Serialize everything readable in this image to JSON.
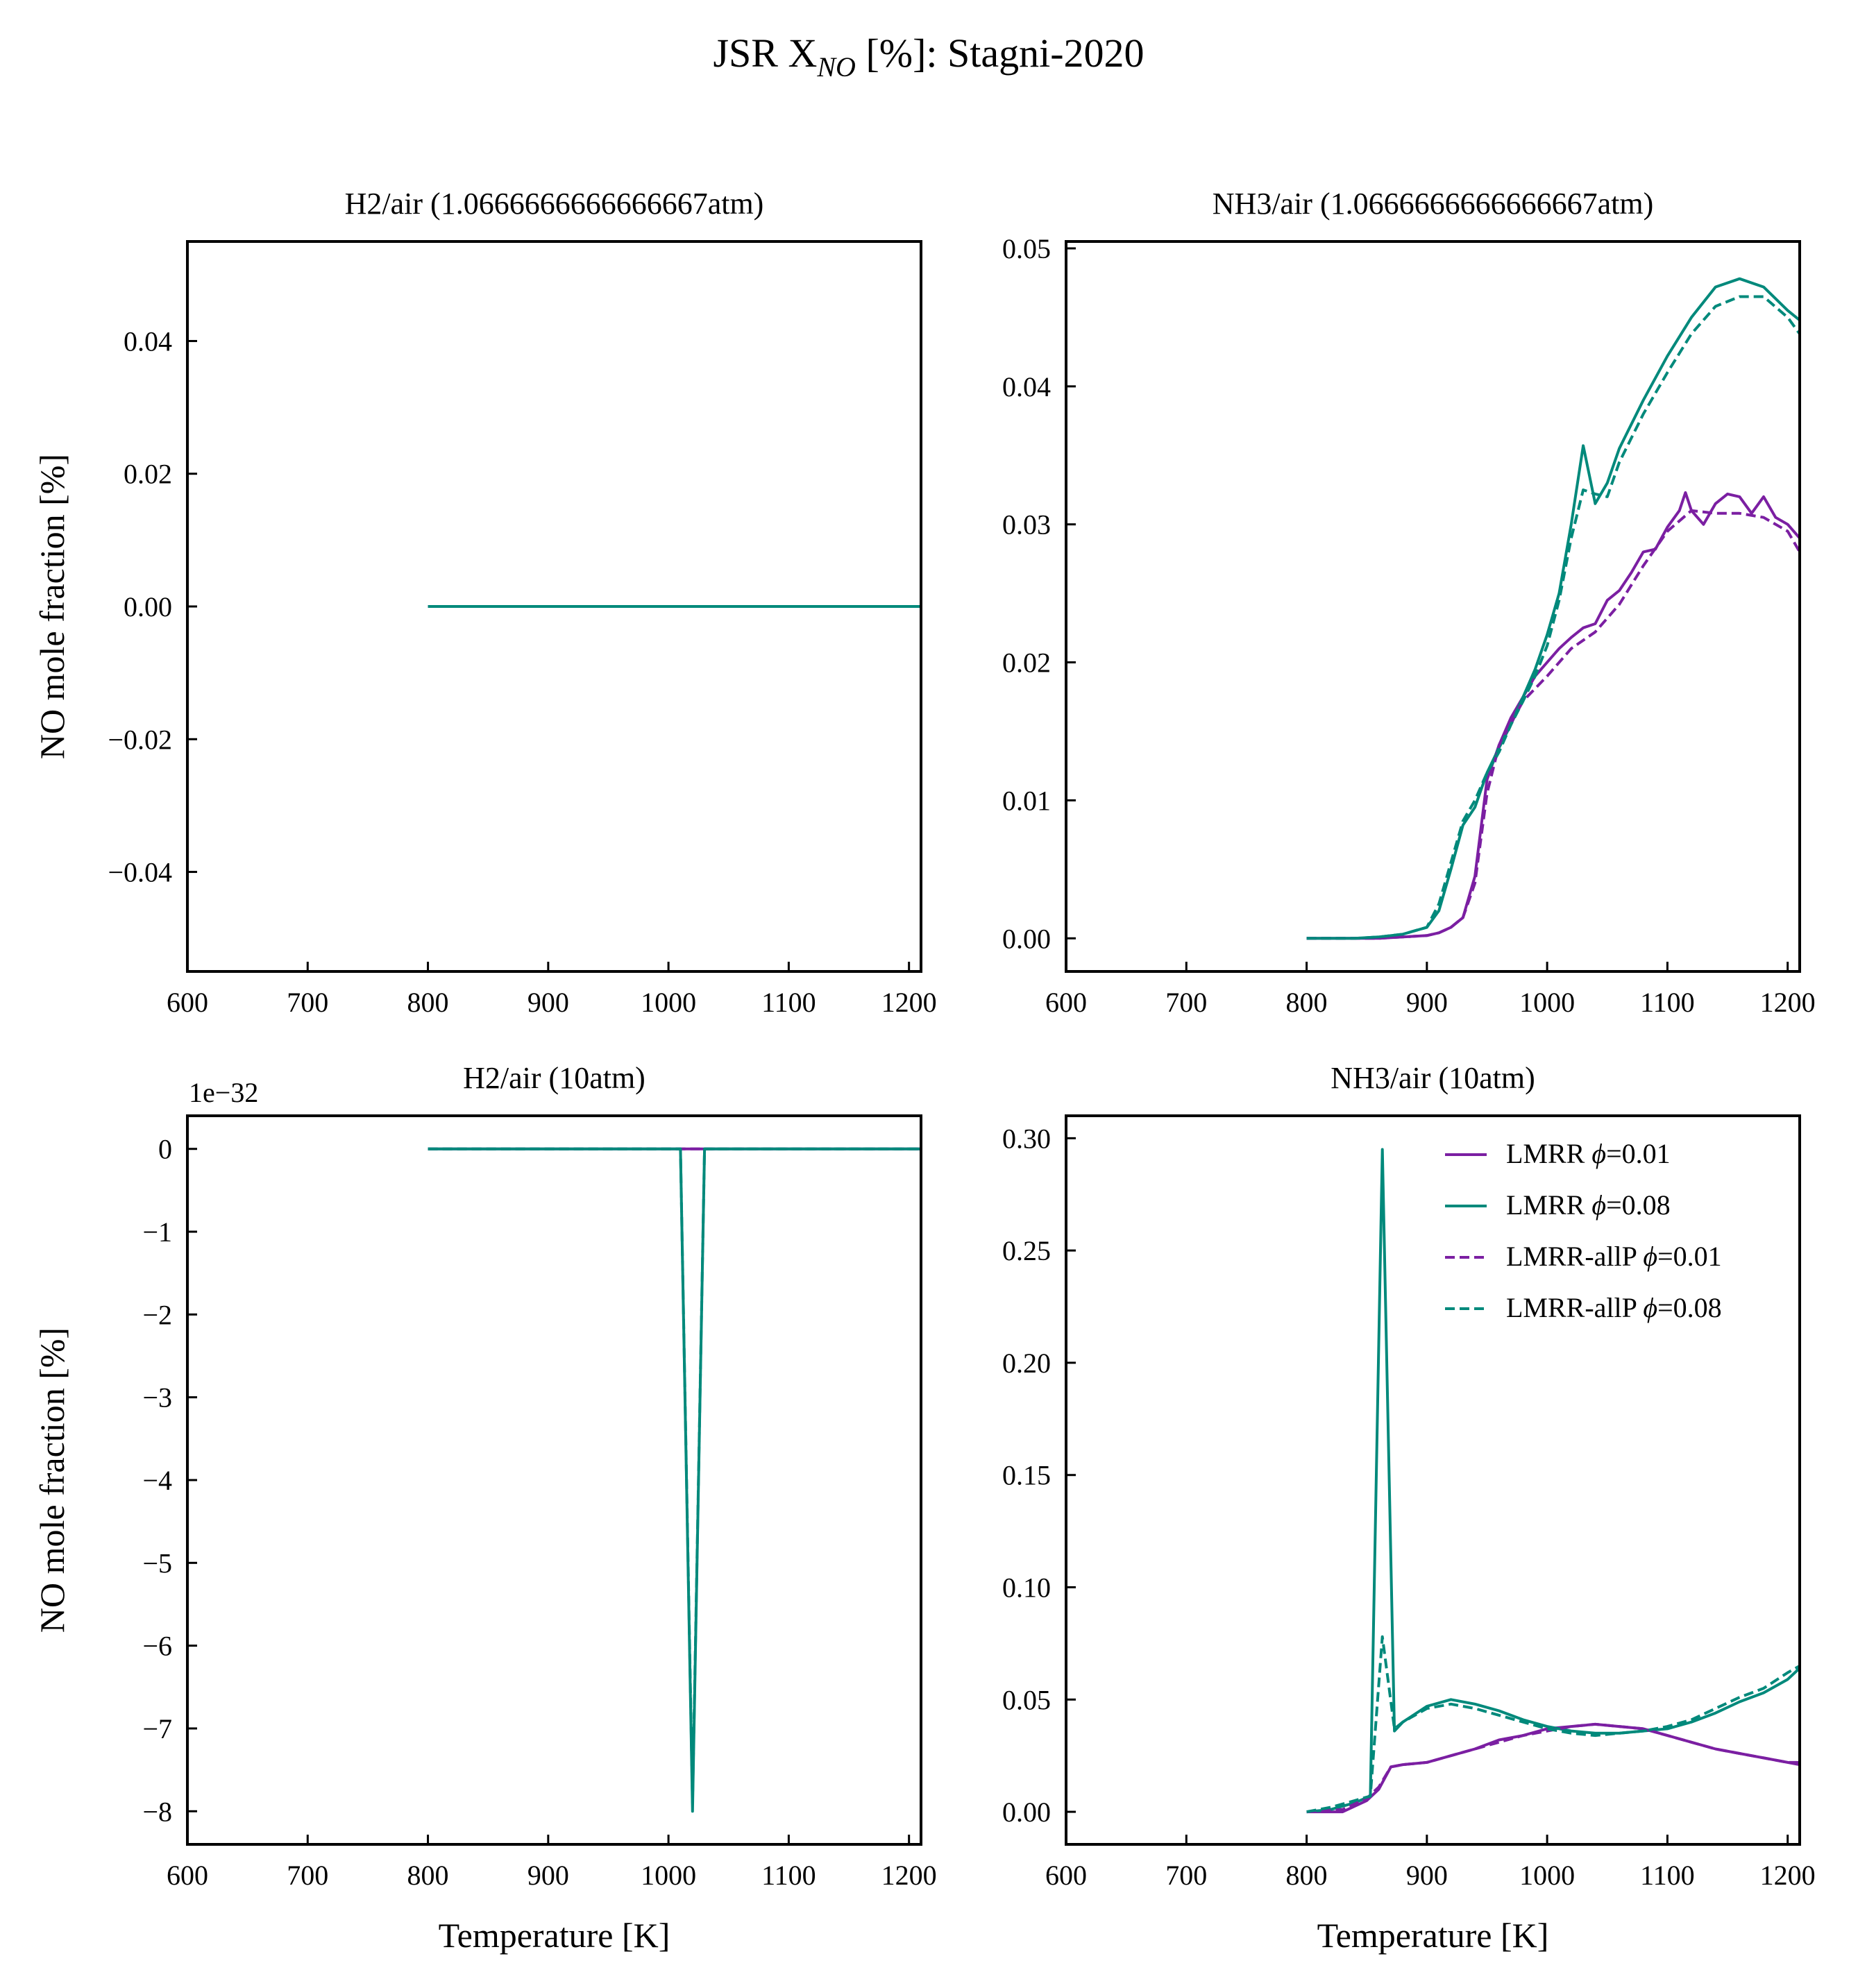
{
  "figure": {
    "title_main": "JSR X",
    "title_sub": "NO",
    "title_rest": " [%]: Stagni-2020"
  },
  "colors": {
    "purple": "#7b1fa2",
    "teal": "#00897b"
  },
  "legend": {
    "placement": "top-right",
    "entries": [
      {
        "prefix": "LMRR ",
        "phi": "ϕ",
        "value": "=0.01",
        "color": "#7b1fa2",
        "style": "solid"
      },
      {
        "prefix": "LMRR ",
        "phi": "ϕ",
        "value": "=0.08",
        "color": "#00897b",
        "style": "solid"
      },
      {
        "prefix": "LMRR-allP ",
        "phi": "ϕ",
        "value": "=0.01",
        "color": "#7b1fa2",
        "style": "dashed"
      },
      {
        "prefix": "LMRR-allP ",
        "phi": "ϕ",
        "value": "=0.08",
        "color": "#00897b",
        "style": "dashed"
      }
    ]
  },
  "chart_data": [
    {
      "type": "line",
      "title": "H2/air (1.0666666666666667atm)",
      "xlabel": "",
      "ylabel": "NO mole fraction [%]",
      "xlim": [
        600,
        1210
      ],
      "ylim": [
        -0.055,
        0.055
      ],
      "xticks": [
        600,
        700,
        800,
        900,
        1000,
        1100,
        1200
      ],
      "yticks": [
        -0.04,
        -0.02,
        0.0,
        0.02,
        0.04
      ],
      "ytick_labels": [
        "−0.04",
        "−0.02",
        "0.00",
        "0.02",
        "0.04"
      ],
      "offset_text": "",
      "series": [
        {
          "color": "#7b1fa2",
          "style": "solid",
          "x": [
            800,
            1210
          ],
          "y": [
            0,
            0
          ]
        },
        {
          "color": "#00897b",
          "style": "solid",
          "x": [
            800,
            1210
          ],
          "y": [
            0,
            0
          ]
        }
      ]
    },
    {
      "type": "line",
      "title": "NH3/air (1.0666666666666667atm)",
      "xlabel": "",
      "ylabel": "",
      "xlim": [
        600,
        1210
      ],
      "ylim": [
        -0.0024,
        0.0505
      ],
      "xticks": [
        600,
        700,
        800,
        900,
        1000,
        1100,
        1200
      ],
      "yticks": [
        0.0,
        0.01,
        0.02,
        0.03,
        0.04,
        0.05
      ],
      "ytick_labels": [
        "0.00",
        "0.01",
        "0.02",
        "0.03",
        "0.04",
        "0.05"
      ],
      "offset_text": "",
      "series": [
        {
          "name": "LMRR ϕ=0.01",
          "color": "#7b1fa2",
          "style": "solid",
          "x": [
            800,
            820,
            840,
            860,
            880,
            900,
            910,
            920,
            930,
            940,
            950,
            960,
            970,
            980,
            990,
            1000,
            1010,
            1020,
            1030,
            1040,
            1050,
            1060,
            1070,
            1080,
            1090,
            1100,
            1110,
            1115,
            1120,
            1130,
            1140,
            1150,
            1160,
            1170,
            1180,
            1190,
            1200,
            1210
          ],
          "y": [
            0,
            0,
            0,
            0,
            0.0001,
            0.0002,
            0.0004,
            0.0008,
            0.0015,
            0.0045,
            0.0115,
            0.014,
            0.016,
            0.0175,
            0.019,
            0.02,
            0.021,
            0.0218,
            0.0225,
            0.0228,
            0.0245,
            0.0252,
            0.0265,
            0.028,
            0.0282,
            0.0298,
            0.031,
            0.0323,
            0.031,
            0.03,
            0.0315,
            0.0322,
            0.032,
            0.0308,
            0.032,
            0.0305,
            0.03,
            0.029
          ]
        },
        {
          "name": "LMRR ϕ=0.08",
          "color": "#00897b",
          "style": "solid",
          "x": [
            800,
            820,
            840,
            860,
            880,
            900,
            910,
            920,
            930,
            940,
            950,
            960,
            970,
            980,
            990,
            1000,
            1010,
            1020,
            1030,
            1040,
            1050,
            1060,
            1080,
            1100,
            1120,
            1140,
            1160,
            1180,
            1200,
            1210
          ],
          "y": [
            0,
            0,
            0,
            0.0001,
            0.0003,
            0.0008,
            0.002,
            0.005,
            0.0082,
            0.0095,
            0.012,
            0.0138,
            0.0155,
            0.0175,
            0.0195,
            0.022,
            0.025,
            0.03,
            0.0357,
            0.0315,
            0.033,
            0.0355,
            0.039,
            0.0422,
            0.045,
            0.0472,
            0.0478,
            0.0472,
            0.0455,
            0.0448
          ]
        },
        {
          "name": "LMRR-allP ϕ=0.01",
          "color": "#7b1fa2",
          "style": "dashed",
          "x": [
            800,
            820,
            840,
            860,
            880,
            900,
            910,
            920,
            930,
            940,
            950,
            960,
            980,
            1000,
            1020,
            1040,
            1060,
            1080,
            1100,
            1120,
            1140,
            1160,
            1180,
            1200,
            1210
          ],
          "y": [
            0,
            0,
            0,
            0,
            0.0001,
            0.0002,
            0.0004,
            0.0008,
            0.0015,
            0.004,
            0.0105,
            0.014,
            0.0172,
            0.019,
            0.021,
            0.0222,
            0.0242,
            0.027,
            0.0295,
            0.031,
            0.0308,
            0.0308,
            0.0305,
            0.0295,
            0.028
          ]
        },
        {
          "name": "LMRR-allP ϕ=0.08",
          "color": "#00897b",
          "style": "dashed",
          "x": [
            800,
            820,
            840,
            860,
            880,
            900,
            910,
            920,
            930,
            940,
            950,
            960,
            970,
            980,
            990,
            1000,
            1010,
            1020,
            1030,
            1040,
            1050,
            1060,
            1080,
            1100,
            1120,
            1140,
            1160,
            1180,
            1200,
            1210
          ],
          "y": [
            0,
            0,
            0,
            0.0001,
            0.0003,
            0.0008,
            0.0025,
            0.0055,
            0.0085,
            0.01,
            0.012,
            0.0135,
            0.0155,
            0.0172,
            0.019,
            0.0212,
            0.0245,
            0.029,
            0.0325,
            0.0322,
            0.032,
            0.0345,
            0.038,
            0.041,
            0.0438,
            0.0458,
            0.0465,
            0.0465,
            0.045,
            0.0438
          ]
        }
      ]
    },
    {
      "type": "line",
      "title": "H2/air (10atm)",
      "xlabel": "Temperature [K]",
      "ylabel": "NO mole fraction [%]",
      "xlim": [
        600,
        1210
      ],
      "ylim": [
        -8.4,
        0.4
      ],
      "xticks": [
        600,
        700,
        800,
        900,
        1000,
        1100,
        1200
      ],
      "yticks": [
        0,
        -1,
        -2,
        -3,
        -4,
        -5,
        -6,
        -7,
        -8
      ],
      "ytick_labels": [
        "0",
        "−1",
        "−2",
        "−3",
        "−4",
        "−5",
        "−6",
        "−7",
        "−8"
      ],
      "offset_text": "1e−32",
      "series": [
        {
          "color": "#7b1fa2",
          "style": "solid",
          "x": [
            800,
            1210
          ],
          "y": [
            0,
            0
          ]
        },
        {
          "color": "#7b1fa2",
          "style": "dashed",
          "x": [
            800,
            1210
          ],
          "y": [
            0,
            0
          ]
        },
        {
          "color": "#00897b",
          "style": "solid",
          "x": [
            800,
            1010,
            1020,
            1030,
            1210
          ],
          "y": [
            0,
            0,
            -8.0,
            0,
            0
          ]
        },
        {
          "color": "#00897b",
          "style": "dashed",
          "x": [
            800,
            1010,
            1020,
            1030,
            1210
          ],
          "y": [
            0,
            0,
            -7.9,
            0,
            0
          ]
        }
      ]
    },
    {
      "type": "line",
      "title": "NH3/air (10atm)",
      "xlabel": "Temperature [K]",
      "ylabel": "",
      "xlim": [
        600,
        1210
      ],
      "ylim": [
        -0.0145,
        0.31
      ],
      "xticks": [
        600,
        700,
        800,
        900,
        1000,
        1100,
        1200
      ],
      "yticks": [
        0.0,
        0.05,
        0.1,
        0.15,
        0.2,
        0.25,
        0.3
      ],
      "ytick_labels": [
        "0.00",
        "0.05",
        "0.10",
        "0.15",
        "0.20",
        "0.25",
        "0.30"
      ],
      "offset_text": "",
      "series": [
        {
          "name": "LMRR ϕ=0.01",
          "color": "#7b1fa2",
          "style": "solid",
          "x": [
            800,
            830,
            850,
            860,
            870,
            880,
            900,
            920,
            940,
            960,
            980,
            1000,
            1020,
            1040,
            1060,
            1080,
            1100,
            1120,
            1140,
            1160,
            1180,
            1200,
            1210
          ],
          "y": [
            0,
            0,
            0.005,
            0.01,
            0.02,
            0.021,
            0.022,
            0.025,
            0.028,
            0.032,
            0.034,
            0.037,
            0.038,
            0.039,
            0.038,
            0.037,
            0.034,
            0.031,
            0.028,
            0.026,
            0.024,
            0.022,
            0.021
          ]
        },
        {
          "name": "LMRR ϕ=0.08",
          "color": "#00897b",
          "style": "solid",
          "x": [
            800,
            820,
            840,
            853,
            863,
            873,
            880,
            900,
            920,
            940,
            960,
            980,
            1000,
            1020,
            1040,
            1060,
            1080,
            1100,
            1120,
            1140,
            1160,
            1180,
            1200,
            1210
          ],
          "y": [
            0,
            0.001,
            0.004,
            0.007,
            0.295,
            0.036,
            0.04,
            0.047,
            0.05,
            0.048,
            0.045,
            0.041,
            0.038,
            0.036,
            0.035,
            0.035,
            0.036,
            0.037,
            0.04,
            0.044,
            0.049,
            0.053,
            0.059,
            0.064
          ]
        },
        {
          "name": "LMRR-allP ϕ=0.01",
          "color": "#7b1fa2",
          "style": "dashed",
          "x": [
            800,
            830,
            850,
            860,
            870,
            880,
            900,
            920,
            940,
            960,
            980,
            1000,
            1020,
            1040,
            1060,
            1080,
            1100,
            1120,
            1140,
            1160,
            1180,
            1200,
            1210
          ],
          "y": [
            0,
            0.001,
            0.006,
            0.011,
            0.02,
            0.021,
            0.022,
            0.025,
            0.028,
            0.031,
            0.034,
            0.036,
            0.038,
            0.039,
            0.038,
            0.037,
            0.034,
            0.031,
            0.028,
            0.026,
            0.024,
            0.022,
            0.022
          ]
        },
        {
          "name": "LMRR-allP ϕ=0.08",
          "color": "#00897b",
          "style": "dashed",
          "x": [
            800,
            820,
            840,
            853,
            863,
            873,
            880,
            900,
            920,
            940,
            960,
            980,
            1000,
            1020,
            1040,
            1060,
            1080,
            1100,
            1120,
            1140,
            1160,
            1180,
            1200,
            1210
          ],
          "y": [
            0,
            0.002,
            0.005,
            0.007,
            0.078,
            0.037,
            0.04,
            0.046,
            0.048,
            0.046,
            0.043,
            0.04,
            0.037,
            0.035,
            0.034,
            0.035,
            0.036,
            0.038,
            0.041,
            0.046,
            0.051,
            0.055,
            0.062,
            0.065
          ]
        }
      ]
    }
  ]
}
